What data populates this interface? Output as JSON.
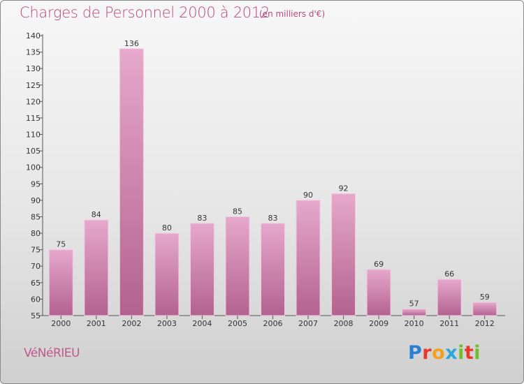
{
  "header": {
    "title": "Charges de Personnel 2000 à 2012",
    "subtitle": "(en milliers d'€)"
  },
  "footer": {
    "commune": "VéNéRIEU",
    "logo_letters": [
      "P",
      "r",
      "o",
      "x",
      "i",
      "t",
      "i"
    ]
  },
  "colors": {
    "title": "#b8487e",
    "bar_top": "#e6a8cc",
    "bar_bottom": "#b2628f",
    "bar_highlight": "#f2c9df"
  },
  "chart_data": {
    "type": "bar",
    "categories": [
      "2000",
      "2001",
      "2002",
      "2003",
      "2004",
      "2005",
      "2006",
      "2007",
      "2008",
      "2009",
      "2010",
      "2011",
      "2012"
    ],
    "values": [
      75,
      84,
      136,
      80,
      83,
      85,
      83,
      90,
      92,
      69,
      57,
      66,
      59
    ],
    "ylim": [
      55,
      140
    ],
    "yticks": [
      55,
      60,
      65,
      70,
      75,
      80,
      85,
      90,
      95,
      100,
      105,
      110,
      115,
      120,
      125,
      130,
      135,
      140
    ],
    "grid": false,
    "xlabel": "",
    "ylabel": ""
  }
}
